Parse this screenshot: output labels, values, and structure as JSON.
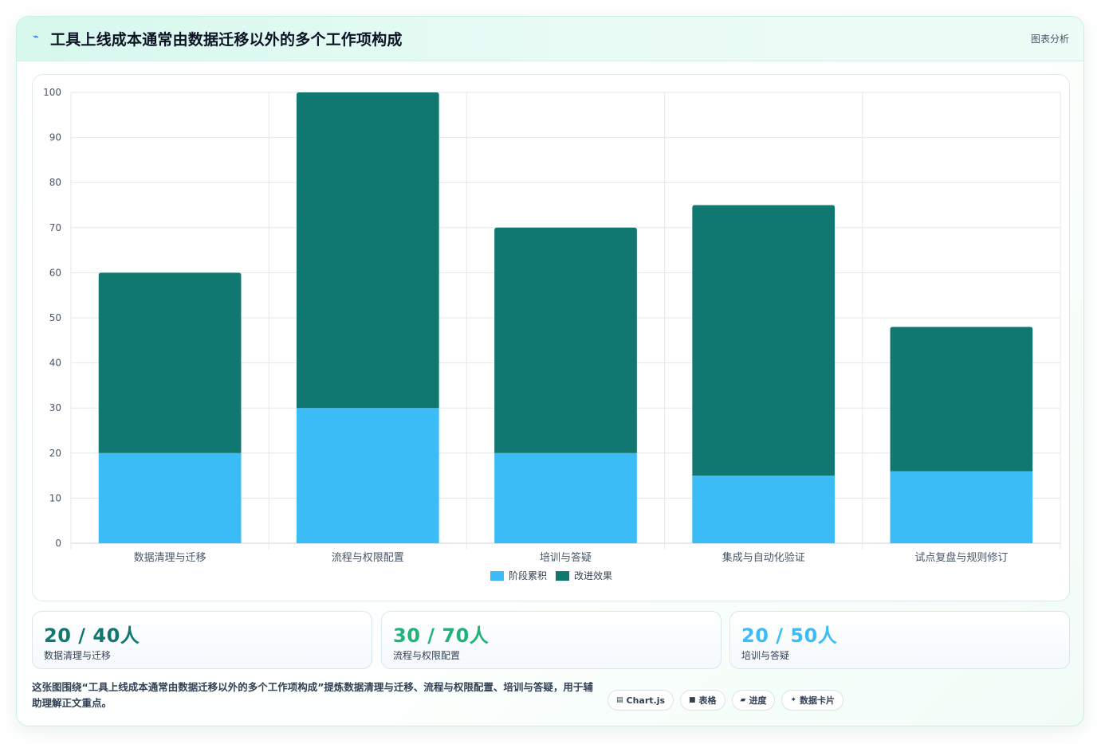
{
  "header": {
    "icon": "chart-spark-icon",
    "title": "工具上线成本通常由数据迁移以外的多个工作项构成",
    "tag": "图表分析"
  },
  "chart_data": {
    "type": "bar",
    "stacked": true,
    "categories": [
      "数据清理与迁移",
      "流程与权限配置",
      "培训与答疑",
      "集成与自动化验证",
      "试点复盘与规则修订"
    ],
    "series": [
      {
        "name": "阶段累积",
        "color": "#3bbcf7",
        "values": [
          20,
          30,
          20,
          15,
          16
        ]
      },
      {
        "name": "改进效果",
        "color": "#107870",
        "values": [
          40,
          70,
          50,
          60,
          32
        ]
      }
    ],
    "ylim": [
      0,
      100
    ],
    "yticks": [
      0,
      10,
      20,
      30,
      40,
      50,
      60,
      70,
      80,
      90,
      100
    ],
    "grid": true,
    "legend_position": "bottom"
  },
  "stats": [
    {
      "value": "20 / 40人",
      "label": "数据清理与迁移",
      "color": "#107870"
    },
    {
      "value": "30 / 70人",
      "label": "流程与权限配置",
      "color": "#1fb37a"
    },
    {
      "value": "20 / 50人",
      "label": "培训与答疑",
      "color": "#3bbcf7"
    }
  ],
  "description": "这张图围绕“工具上线成本通常由数据迁移以外的多个工作项构成”提炼数据清理与迁移、流程与权限配置、培训与答疑，用于辅助理解正文重点。",
  "chips": [
    {
      "icon": "chart-icon",
      "glyph": "▤",
      "label": "Chart.js"
    },
    {
      "icon": "table-icon",
      "glyph": "■",
      "label": "表格"
    },
    {
      "icon": "progress-icon",
      "glyph": "▰",
      "label": "进度"
    },
    {
      "icon": "sparkle-icon",
      "glyph": "✦",
      "label": "数据卡片"
    }
  ]
}
